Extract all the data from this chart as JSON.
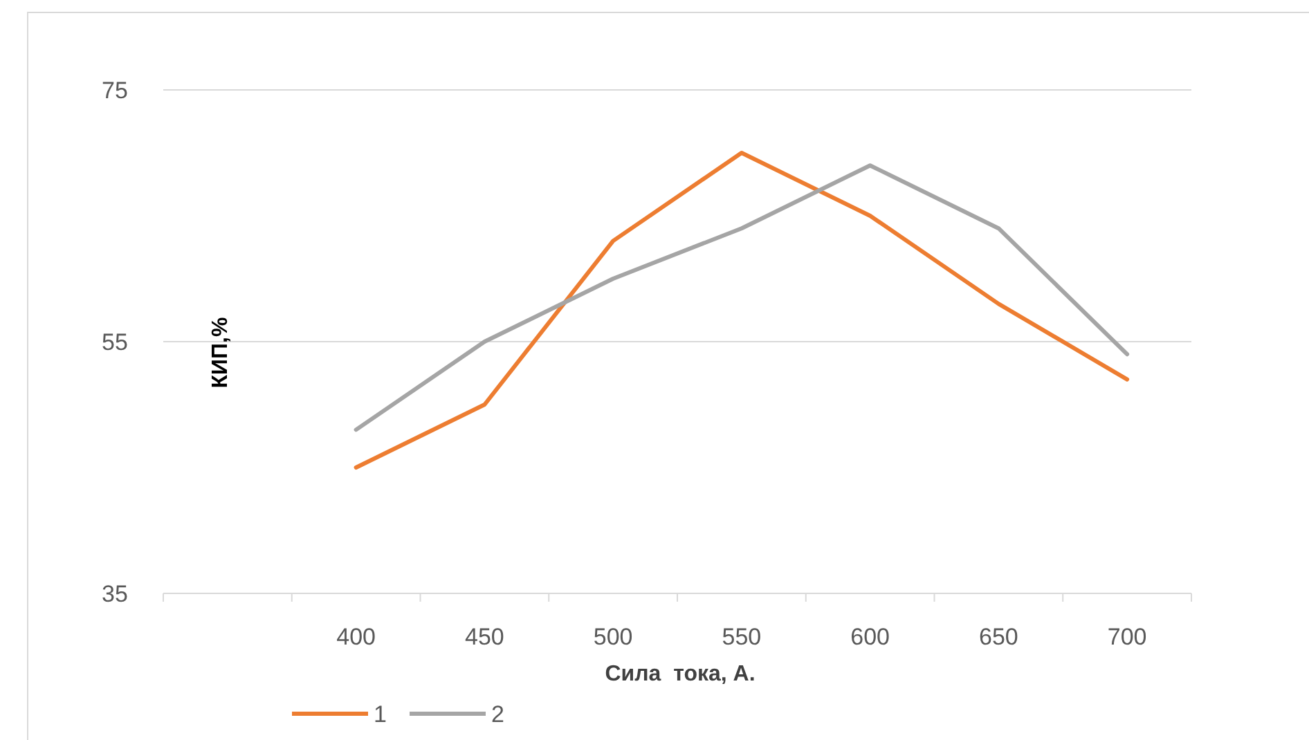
{
  "chart_data": {
    "type": "line",
    "xlabel": "Сила  тока, А.",
    "ylabel": "КИП,%",
    "categories": [
      null,
      "400",
      "450",
      "500",
      "550",
      "600",
      "650",
      "700"
    ],
    "series": [
      {
        "name": "1",
        "color": "#ed7d31",
        "values": [
          null,
          45,
          50,
          63,
          70,
          65,
          58,
          52
        ]
      },
      {
        "name": "2",
        "color": "#a5a5a5",
        "values": [
          null,
          48,
          55,
          60,
          64,
          69,
          64,
          54
        ]
      }
    ],
    "ylim": [
      35,
      75
    ],
    "yticks": [
      35,
      55,
      75
    ],
    "grid": "y",
    "legend": "bottom",
    "marker": "none",
    "line_style": "solid"
  }
}
